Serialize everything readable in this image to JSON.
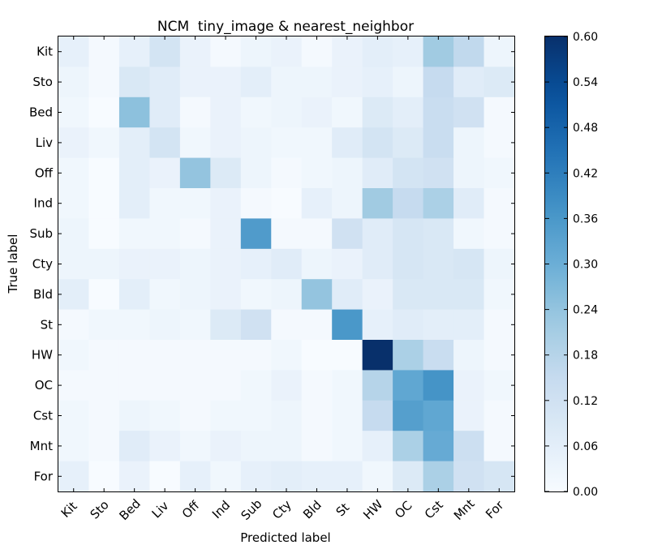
{
  "chart_data": {
    "type": "heatmap",
    "title": "NCM  tiny_image & nearest_neighbor",
    "xlabel": "Predicted label",
    "ylabel": "True label",
    "categories": [
      "Kit",
      "Sto",
      "Bed",
      "Liv",
      "Off",
      "Ind",
      "Sub",
      "Cty",
      "Bld",
      "St",
      "HW",
      "OC",
      "Cst",
      "Mnt",
      "For"
    ],
    "colorbar": {
      "min": 0.0,
      "max": 0.6,
      "ticks": [
        "0.00",
        "0.06",
        "0.12",
        "0.18",
        "0.24",
        "0.30",
        "0.36",
        "0.42",
        "0.48",
        "0.54",
        "0.60"
      ],
      "colormap": "Blues"
    },
    "matrix": [
      [
        0.05,
        0.01,
        0.05,
        0.11,
        0.04,
        0.01,
        0.03,
        0.04,
        0.01,
        0.04,
        0.06,
        0.05,
        0.22,
        0.16,
        0.03
      ],
      [
        0.03,
        0.01,
        0.09,
        0.07,
        0.04,
        0.04,
        0.06,
        0.03,
        0.03,
        0.04,
        0.05,
        0.03,
        0.15,
        0.07,
        0.08
      ],
      [
        0.02,
        0.0,
        0.25,
        0.07,
        0.01,
        0.04,
        0.02,
        0.03,
        0.04,
        0.02,
        0.08,
        0.06,
        0.14,
        0.12,
        0.01
      ],
      [
        0.04,
        0.02,
        0.06,
        0.11,
        0.02,
        0.04,
        0.03,
        0.02,
        0.02,
        0.07,
        0.11,
        0.08,
        0.14,
        0.03,
        0.01
      ],
      [
        0.02,
        0.0,
        0.06,
        0.04,
        0.24,
        0.08,
        0.03,
        0.01,
        0.02,
        0.03,
        0.07,
        0.11,
        0.12,
        0.03,
        0.02
      ],
      [
        0.02,
        0.0,
        0.06,
        0.02,
        0.02,
        0.04,
        0.01,
        0.0,
        0.05,
        0.03,
        0.22,
        0.15,
        0.2,
        0.07,
        0.01
      ],
      [
        0.03,
        0.0,
        0.02,
        0.02,
        0.01,
        0.04,
        0.35,
        0.01,
        0.01,
        0.12,
        0.07,
        0.1,
        0.09,
        0.02,
        0.01
      ],
      [
        0.03,
        0.03,
        0.04,
        0.04,
        0.03,
        0.04,
        0.05,
        0.07,
        0.03,
        0.04,
        0.07,
        0.1,
        0.09,
        0.1,
        0.03
      ],
      [
        0.06,
        0.0,
        0.06,
        0.02,
        0.03,
        0.04,
        0.02,
        0.03,
        0.24,
        0.07,
        0.04,
        0.09,
        0.09,
        0.09,
        0.02
      ],
      [
        0.01,
        0.02,
        0.02,
        0.03,
        0.02,
        0.08,
        0.12,
        0.01,
        0.01,
        0.36,
        0.05,
        0.07,
        0.06,
        0.06,
        0.01
      ],
      [
        0.02,
        0.01,
        0.01,
        0.01,
        0.01,
        0.01,
        0.01,
        0.02,
        0.0,
        0.0,
        0.6,
        0.2,
        0.14,
        0.03,
        0.01
      ],
      [
        0.01,
        0.01,
        0.01,
        0.01,
        0.01,
        0.01,
        0.02,
        0.04,
        0.01,
        0.02,
        0.18,
        0.32,
        0.37,
        0.04,
        0.02
      ],
      [
        0.02,
        0.01,
        0.03,
        0.02,
        0.01,
        0.02,
        0.02,
        0.03,
        0.01,
        0.02,
        0.15,
        0.34,
        0.32,
        0.04,
        0.01
      ],
      [
        0.02,
        0.01,
        0.07,
        0.04,
        0.02,
        0.04,
        0.03,
        0.03,
        0.01,
        0.02,
        0.05,
        0.2,
        0.31,
        0.13,
        0.01
      ],
      [
        0.05,
        0.0,
        0.04,
        0.0,
        0.05,
        0.02,
        0.05,
        0.06,
        0.05,
        0.05,
        0.02,
        0.08,
        0.2,
        0.12,
        0.1
      ]
    ]
  }
}
